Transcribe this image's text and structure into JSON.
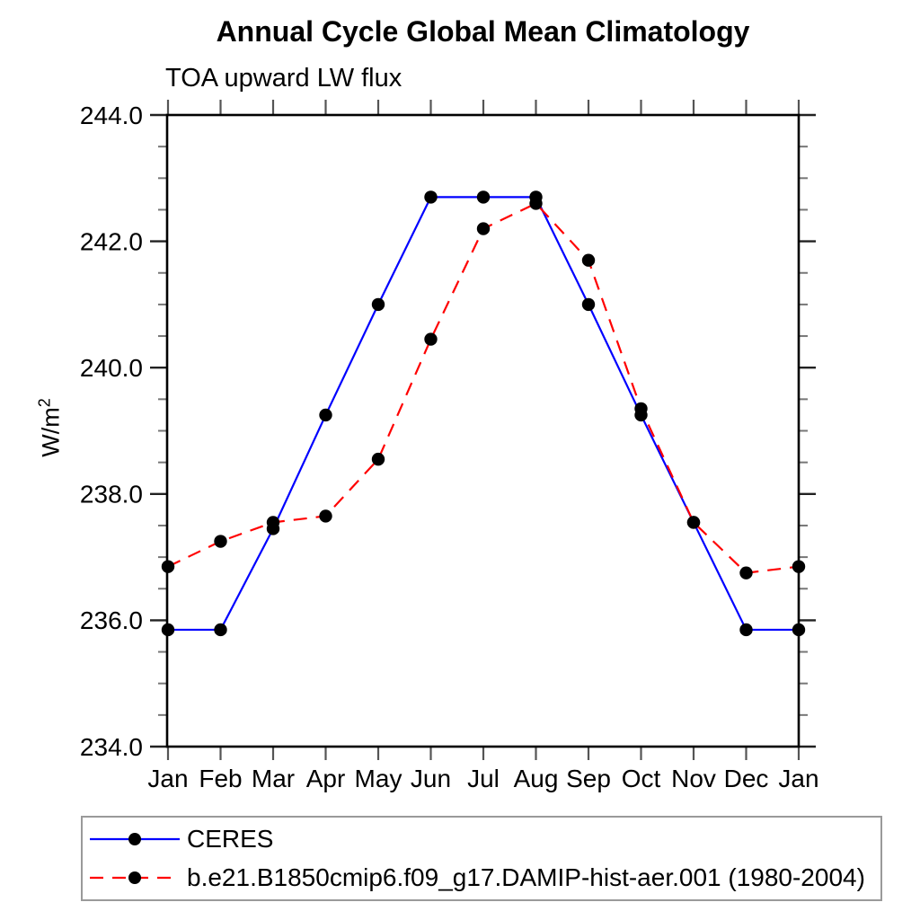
{
  "title": "Annual Cycle Global Mean Climatology",
  "subtitle": "TOA upward LW flux",
  "chart_data": {
    "type": "line",
    "categories": [
      "Jan",
      "Feb",
      "Mar",
      "Apr",
      "May",
      "Jun",
      "Jul",
      "Aug",
      "Sep",
      "Oct",
      "Nov",
      "Dec",
      "Jan"
    ],
    "series": [
      {
        "name": "CERES",
        "color": "#0000ff",
        "line_style": "solid",
        "marker": "filled-circle",
        "marker_color": "#000000",
        "values": [
          235.85,
          235.85,
          237.45,
          239.25,
          241.0,
          242.7,
          242.7,
          242.7,
          241.0,
          239.25,
          237.55,
          235.85,
          235.85
        ]
      },
      {
        "name": "b.e21.B1850cmip6.f09_g17.DAMIP-hist-aer.001 (1980-2004)",
        "color": "#ff0000",
        "line_style": "dashed",
        "marker": "filled-circle",
        "marker_color": "#000000",
        "values": [
          236.85,
          237.25,
          237.55,
          237.65,
          238.55,
          240.45,
          242.2,
          242.6,
          241.7,
          239.35,
          237.55,
          236.75,
          236.85
        ]
      }
    ],
    "ylabel_base": "W/m",
    "ylabel_sup": "2",
    "xlabel": "",
    "ylim": [
      234.0,
      244.0
    ],
    "ytick_values": [
      234,
      236,
      238,
      240,
      242,
      244
    ],
    "ytick_labels": [
      "234.0",
      "236.0",
      "238.0",
      "240.0",
      "242.0",
      "244.0"
    ],
    "ytick_minor_step": 0.5,
    "grid": "off",
    "legend_position": "bottom-left"
  }
}
